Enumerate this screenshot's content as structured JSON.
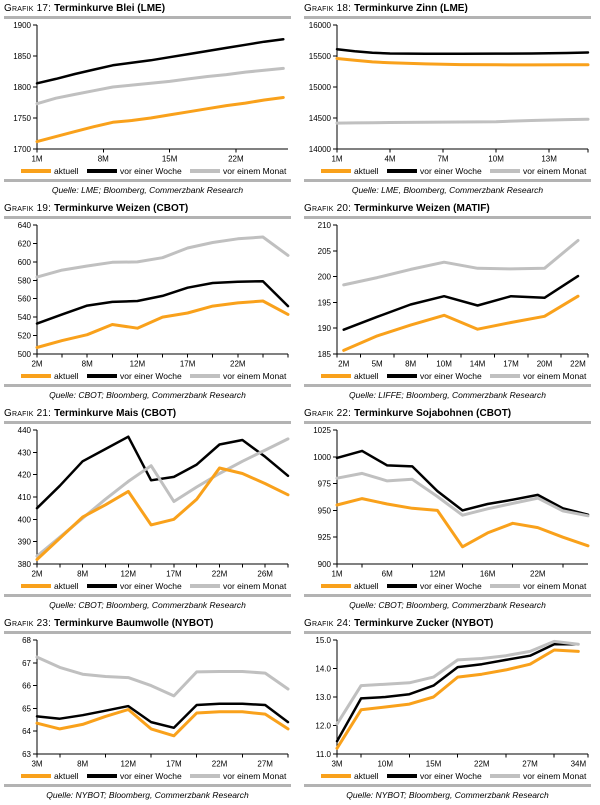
{
  "page": {
    "background": "#ffffff",
    "divider_color": "#b3b3b3",
    "axis_color": "#000000"
  },
  "chart_data": [
    {
      "id": "grafik-17",
      "type": "line",
      "label": "Grafik 17:",
      "title": "Terminkurve Blei (LME)",
      "source": "Quelle: LME; Bloomberg, Commerzbank Research",
      "ylim": [
        1700,
        1900
      ],
      "yticks": [
        1700,
        1750,
        1800,
        1850,
        1900
      ],
      "ytick_labels": [
        "1700",
        "1750",
        "1800",
        "1850",
        "1900"
      ],
      "xlim": [
        1,
        27.5
      ],
      "xticks": [
        {
          "x": 1,
          "label": "1M"
        },
        {
          "x": 8,
          "label": "8M"
        },
        {
          "x": 15,
          "label": "15M"
        },
        {
          "x": 22,
          "label": "22M"
        }
      ],
      "xtick_marks": [
        1,
        8,
        15,
        22
      ],
      "grid": false,
      "legend_position": "bottom",
      "x": [
        1,
        3,
        5,
        7,
        9,
        11,
        13,
        15,
        17,
        19,
        21,
        23,
        25,
        27
      ],
      "series": [
        {
          "name": "aktuell",
          "color": "#F9A11B",
          "width": 3,
          "values": [
            1712,
            1720,
            1728,
            1736,
            1743,
            1746,
            1750,
            1755,
            1760,
            1765,
            1770,
            1774,
            1779,
            1783
          ]
        },
        {
          "name": "vor einer Woche",
          "color": "#000000",
          "width": 2.5,
          "values": [
            1806,
            1813,
            1821,
            1828,
            1835,
            1839,
            1843,
            1848,
            1853,
            1858,
            1863,
            1868,
            1873,
            1877
          ]
        },
        {
          "name": "vor einem Monat",
          "color": "#C0C0C0",
          "width": 3,
          "values": [
            1773,
            1782,
            1788,
            1794,
            1800,
            1803,
            1806,
            1809,
            1813,
            1817,
            1820,
            1824,
            1827,
            1830
          ]
        }
      ]
    },
    {
      "id": "grafik-18",
      "type": "line",
      "label": "Grafik 18:",
      "title": "Terminkurve Zinn (LME)",
      "source": "Quelle: LME, Bloomberg, Commerzbank Research",
      "ylim": [
        14000,
        16000
      ],
      "yticks": [
        14000,
        14500,
        15000,
        15500,
        16000
      ],
      "ytick_labels": [
        "14000",
        "14500",
        "15000",
        "15500",
        "16000"
      ],
      "xlim": [
        1,
        15.2
      ],
      "xticks": [
        {
          "x": 1,
          "label": "1M"
        },
        {
          "x": 4,
          "label": "4M"
        },
        {
          "x": 7,
          "label": "7M"
        },
        {
          "x": 10,
          "label": "10M"
        },
        {
          "x": 13,
          "label": "13M"
        }
      ],
      "xtick_marks": [
        1,
        4,
        7,
        10,
        13,
        15.2
      ],
      "grid": false,
      "legend_position": "bottom",
      "x": [
        1,
        2,
        3,
        4,
        6,
        8,
        10,
        12,
        14,
        15.2
      ],
      "series": [
        {
          "name": "aktuell",
          "color": "#F9A11B",
          "width": 3,
          "values": [
            15460,
            15430,
            15405,
            15390,
            15372,
            15362,
            15358,
            15357,
            15358,
            15360
          ]
        },
        {
          "name": "vor einer Woche",
          "color": "#000000",
          "width": 2.5,
          "values": [
            15610,
            15578,
            15552,
            15540,
            15535,
            15537,
            15538,
            15540,
            15549,
            15557
          ]
        },
        {
          "name": "vor einem Monat",
          "color": "#C0C0C0",
          "width": 3,
          "values": [
            14418,
            14421,
            14424,
            14427,
            14431,
            14436,
            14441,
            14459,
            14474,
            14480
          ]
        }
      ]
    },
    {
      "id": "grafik-19",
      "type": "line",
      "label": "Grafik 19:",
      "title": "Terminkurve Weizen (CBOT)",
      "source": "Quelle: CBOT; Bloomberg, Commerzbank Research",
      "ylim": [
        500,
        640
      ],
      "yticks": [
        500,
        520,
        540,
        560,
        580,
        600,
        620,
        640
      ],
      "ytick_labels": [
        "500",
        "520",
        "540",
        "560",
        "580",
        "600",
        "620",
        "640"
      ],
      "xlim": [
        0,
        10
      ],
      "xticks": [
        {
          "x": 0,
          "label": "2M"
        },
        {
          "x": 2,
          "label": "8M"
        },
        {
          "x": 4,
          "label": "12M"
        },
        {
          "x": 6,
          "label": "17M"
        },
        {
          "x": 8,
          "label": "22M"
        }
      ],
      "xtick_marks": [
        0,
        1,
        2,
        3,
        4,
        5,
        6,
        7,
        8,
        9,
        10
      ],
      "grid": false,
      "legend_position": "bottom",
      "x": [
        0,
        1,
        2,
        3,
        4,
        5,
        6,
        7,
        8,
        9,
        10
      ],
      "series": [
        {
          "name": "aktuell",
          "color": "#F9A11B",
          "width": 3,
          "values": [
            507,
            514.5,
            521,
            532,
            528,
            540,
            544.5,
            552,
            555.5,
            557.5,
            543
          ]
        },
        {
          "name": "vor einer Woche",
          "color": "#000000",
          "width": 2.5,
          "values": [
            533,
            543,
            552.5,
            556.5,
            557.5,
            563,
            572,
            577,
            578.5,
            579,
            552
          ]
        },
        {
          "name": "vor einem Monat",
          "color": "#C0C0C0",
          "width": 3,
          "values": [
            583.5,
            591,
            595.5,
            599.5,
            600,
            604.5,
            615,
            621,
            625,
            627,
            607
          ]
        }
      ]
    },
    {
      "id": "grafik-20",
      "type": "line",
      "label": "Grafik 20:",
      "title": "Terminkurve Weizen (MATIF)",
      "source": "Quelle: LIFFE; Bloomberg, Commerzbank Research",
      "ylim": [
        185,
        210
      ],
      "yticks": [
        185,
        190,
        195,
        200,
        205,
        210
      ],
      "ytick_labels": [
        "185",
        "190",
        "195",
        "200",
        "205",
        "210"
      ],
      "xlim": [
        -0.2,
        7.3
      ],
      "xticks": [
        {
          "x": 0,
          "label": "2M"
        },
        {
          "x": 1,
          "label": "5M"
        },
        {
          "x": 2,
          "label": "8M"
        },
        {
          "x": 3,
          "label": "10M"
        },
        {
          "x": 4,
          "label": "14M"
        },
        {
          "x": 5,
          "label": "17M"
        },
        {
          "x": 6,
          "label": "20M"
        },
        {
          "x": 7,
          "label": "22M"
        }
      ],
      "xtick_marks": [
        -0.2,
        0.5,
        1.5,
        2.5,
        3.5,
        4.5,
        5.5,
        6.5,
        7.3
      ],
      "grid": false,
      "legend_position": "bottom",
      "x": [
        0,
        1,
        2,
        3,
        4,
        5,
        6,
        7
      ],
      "series": [
        {
          "name": "aktuell",
          "color": "#F9A11B",
          "width": 3,
          "values": [
            185.7,
            188.5,
            190.6,
            192.5,
            189.8,
            191.1,
            192.3,
            196.2
          ]
        },
        {
          "name": "vor einer Woche",
          "color": "#000000",
          "width": 2.5,
          "values": [
            189.7,
            192.2,
            194.6,
            196.2,
            194.4,
            196.2,
            195.9,
            200.1
          ]
        },
        {
          "name": "vor einem Monat",
          "color": "#C0C0C0",
          "width": 3,
          "values": [
            198.4,
            199.8,
            201.4,
            202.8,
            201.6,
            201.5,
            201.6,
            207
          ]
        }
      ]
    },
    {
      "id": "grafik-21",
      "type": "line",
      "label": "Grafik 21:",
      "title": "Terminkurve Mais (CBOT)",
      "source": "Quelle: CBOT; Bloomberg, Commerzbank Research",
      "ylim": [
        380,
        440
      ],
      "yticks": [
        380,
        390,
        400,
        410,
        420,
        430,
        440
      ],
      "ytick_labels": [
        "380",
        "390",
        "400",
        "410",
        "420",
        "430",
        "440"
      ],
      "xlim": [
        0,
        11
      ],
      "xticks": [
        {
          "x": 0,
          "label": "2M"
        },
        {
          "x": 2,
          "label": "8M"
        },
        {
          "x": 4,
          "label": "12M"
        },
        {
          "x": 6,
          "label": "17M"
        },
        {
          "x": 8,
          "label": "22M"
        },
        {
          "x": 10,
          "label": "26M"
        }
      ],
      "xtick_marks": [
        0,
        1,
        2,
        3,
        4,
        5,
        6,
        7,
        8,
        9,
        10,
        11
      ],
      "grid": false,
      "legend_position": "bottom",
      "x": [
        0,
        1,
        2,
        3,
        4,
        5,
        6,
        7,
        8,
        9,
        10,
        11
      ],
      "series": [
        {
          "name": "aktuell",
          "color": "#F9A11B",
          "width": 3,
          "values": [
            382,
            391.5,
            401,
            406.5,
            412.5,
            397.5,
            400,
            409,
            423,
            420.5,
            416,
            411
          ]
        },
        {
          "name": "vor einer Woche",
          "color": "#000000",
          "width": 2.5,
          "values": [
            405,
            415,
            426,
            431.5,
            437,
            417.5,
            419,
            424.5,
            433.5,
            435.5,
            428,
            419.5
          ]
        },
        {
          "name": "vor einem Monat",
          "color": "#C0C0C0",
          "width": 3,
          "values": [
            383.5,
            392,
            400.5,
            409,
            417,
            424,
            408,
            414.5,
            420.5,
            426,
            431,
            436
          ]
        }
      ]
    },
    {
      "id": "grafik-22",
      "type": "line",
      "label": "Grafik 22:",
      "title": "Terminkurve Sojabohnen (CBOT)",
      "source": "Quelle: CBOT; Bloomberg, Commerzbank Research",
      "ylim": [
        900,
        1025
      ],
      "yticks": [
        900,
        925,
        950,
        975,
        1000,
        1025
      ],
      "ytick_labels": [
        "900",
        "925",
        "950",
        "975",
        "1000",
        "1025"
      ],
      "xlim": [
        0,
        10
      ],
      "xticks": [
        {
          "x": 0,
          "label": "1M"
        },
        {
          "x": 2,
          "label": "6M"
        },
        {
          "x": 4,
          "label": "12M"
        },
        {
          "x": 6,
          "label": "16M"
        },
        {
          "x": 8,
          "label": "22M"
        }
      ],
      "xtick_marks": [
        0,
        1,
        3,
        5,
        7,
        9
      ],
      "grid": false,
      "legend_position": "bottom",
      "x": [
        0,
        1,
        2,
        3,
        4,
        5,
        6,
        7,
        8,
        9,
        10
      ],
      "series": [
        {
          "name": "aktuell",
          "color": "#F9A11B",
          "width": 3,
          "values": [
            955,
            961,
            956,
            952,
            950,
            916,
            929,
            938,
            934,
            925,
            917
          ]
        },
        {
          "name": "vor einer Woche",
          "color": "#000000",
          "width": 2.5,
          "values": [
            999,
            1005.5,
            992,
            991,
            968,
            950,
            956,
            960,
            964.5,
            952,
            946
          ]
        },
        {
          "name": "vor einem Monat",
          "color": "#C0C0C0",
          "width": 3,
          "values": [
            980,
            984.5,
            977.5,
            979,
            963,
            945.5,
            951.5,
            956.5,
            961.5,
            949.5,
            945
          ]
        }
      ]
    },
    {
      "id": "grafik-23",
      "type": "line",
      "label": "Grafik 23:",
      "title": "Terminkurve Baumwolle (NYBOT)",
      "source": "Quelle: NYBOT; Bloomberg, Commerzbank Research",
      "ylim": [
        63,
        68
      ],
      "yticks": [
        63,
        64,
        65,
        66,
        67,
        68
      ],
      "ytick_labels": [
        "63",
        "64",
        "65",
        "66",
        "67",
        "68"
      ],
      "xlim": [
        0,
        11
      ],
      "xticks": [
        {
          "x": 0,
          "label": "3M"
        },
        {
          "x": 2,
          "label": "8M"
        },
        {
          "x": 4,
          "label": "12M"
        },
        {
          "x": 6,
          "label": "17M"
        },
        {
          "x": 8,
          "label": "22M"
        },
        {
          "x": 10,
          "label": "27M"
        }
      ],
      "xtick_marks": [
        0,
        1,
        3,
        5,
        7,
        9,
        11
      ],
      "grid": false,
      "legend_position": "bottom",
      "x": [
        0,
        1,
        2,
        3,
        4,
        5,
        6,
        7,
        8,
        9,
        10,
        11
      ],
      "series": [
        {
          "name": "aktuell",
          "color": "#F9A11B",
          "width": 3,
          "values": [
            64.35,
            64.1,
            64.3,
            64.65,
            64.95,
            64.1,
            63.8,
            64.8,
            64.85,
            64.85,
            64.75,
            64.1
          ]
        },
        {
          "name": "vor einer Woche",
          "color": "#000000",
          "width": 2.5,
          "values": [
            64.65,
            64.55,
            64.7,
            64.9,
            65.1,
            64.4,
            64.15,
            65.15,
            65.2,
            65.2,
            65.15,
            64.4
          ]
        },
        {
          "name": "vor einem Monat",
          "color": "#C0C0C0",
          "width": 3,
          "values": [
            67.25,
            66.8,
            66.5,
            66.4,
            66.35,
            66.0,
            65.55,
            66.6,
            66.62,
            66.62,
            66.55,
            65.85
          ]
        }
      ]
    },
    {
      "id": "grafik-24",
      "type": "line",
      "label": "Grafik 24:",
      "title": "Terminkurve Zucker (NYBOT)",
      "source": "Quelle: NYBOT; Bloomberg, Commerzbank Research",
      "ylim": [
        11,
        15
      ],
      "yticks": [
        11,
        12,
        13,
        14,
        15
      ],
      "ytick_labels": [
        "11.0",
        "12.0",
        "13.0",
        "14.0",
        "15.0"
      ],
      "xlim": [
        0,
        10.4
      ],
      "xticks": [
        {
          "x": 0,
          "label": "3M"
        },
        {
          "x": 2,
          "label": "10M"
        },
        {
          "x": 4,
          "label": "15M"
        },
        {
          "x": 6,
          "label": "22M"
        },
        {
          "x": 8,
          "label": "27M"
        },
        {
          "x": 10,
          "label": "34M"
        }
      ],
      "xtick_marks": [
        0,
        1,
        3,
        5,
        7,
        9,
        10.4
      ],
      "grid": false,
      "legend_position": "bottom",
      "x": [
        0,
        1,
        2,
        3,
        4,
        5,
        6,
        7,
        8,
        9,
        10
      ],
      "series": [
        {
          "name": "aktuell",
          "color": "#F9A11B",
          "width": 3,
          "values": [
            11.2,
            12.55,
            12.65,
            12.75,
            13.0,
            13.7,
            13.8,
            13.95,
            14.15,
            14.65,
            14.6
          ]
        },
        {
          "name": "vor einer Woche",
          "color": "#000000",
          "width": 2.5,
          "values": [
            11.45,
            12.95,
            13.0,
            13.1,
            13.4,
            14.05,
            14.15,
            14.3,
            14.45,
            14.85,
            14.85
          ]
        },
        {
          "name": "vor einem Monat",
          "color": "#C0C0C0",
          "width": 3,
          "values": [
            12.05,
            13.4,
            13.45,
            13.5,
            13.7,
            14.3,
            14.35,
            14.45,
            14.6,
            14.95,
            14.85
          ]
        }
      ]
    }
  ]
}
